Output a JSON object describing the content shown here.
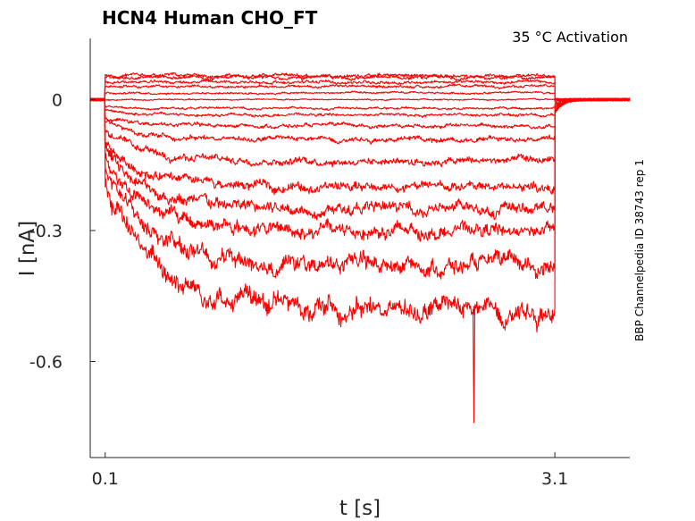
{
  "chart_data": {
    "type": "line",
    "title": "HCN4  Human  CHO_FT",
    "annotation": "35 °C  Activation",
    "side_label": "BBP Channelpedia ID 38743 rep 1",
    "xlabel": "t [s]",
    "ylabel": "I [nA]",
    "xlim": [
      0.0,
      3.6
    ],
    "ylim": [
      -0.82,
      0.14
    ],
    "xticks": [
      0.1,
      3.1
    ],
    "xtick_labels": [
      "0.1",
      "3.1"
    ],
    "yticks": [
      0,
      -0.3,
      -0.6
    ],
    "ytick_labels": [
      "0",
      "-0.3",
      "-0.6"
    ],
    "grid": false,
    "color": "#ff0000",
    "pulse_start": 0.1,
    "pulse_end": 3.1,
    "spike": {
      "t": 2.56,
      "i": -0.74
    },
    "series": [
      {
        "steady": 0.055,
        "early": 0.055,
        "tail": 0.0
      },
      {
        "steady": 0.05,
        "early": 0.05,
        "tail": 0.0
      },
      {
        "steady": 0.04,
        "early": 0.04,
        "tail": 0.0
      },
      {
        "steady": 0.03,
        "early": 0.03,
        "tail": 0.0
      },
      {
        "steady": 0.015,
        "early": 0.015,
        "tail": 0.0
      },
      {
        "steady": 0.0,
        "early": 0.0,
        "tail": -0.005
      },
      {
        "steady": -0.02,
        "early": -0.015,
        "tail": -0.01
      },
      {
        "steady": -0.035,
        "early": -0.025,
        "tail": -0.015
      },
      {
        "steady": -0.06,
        "early": -0.04,
        "tail": -0.02
      },
      {
        "steady": -0.09,
        "early": -0.05,
        "tail": -0.02
      },
      {
        "steady": -0.14,
        "early": -0.07,
        "tail": -0.025
      },
      {
        "steady": -0.2,
        "early": -0.1,
        "tail": -0.03
      },
      {
        "steady": -0.25,
        "early": -0.11,
        "tail": -0.03
      },
      {
        "steady": -0.3,
        "early": -0.13,
        "tail": -0.03
      },
      {
        "steady": -0.38,
        "early": -0.16,
        "tail": -0.03
      },
      {
        "steady": -0.48,
        "early": -0.2,
        "tail": -0.03
      }
    ]
  }
}
